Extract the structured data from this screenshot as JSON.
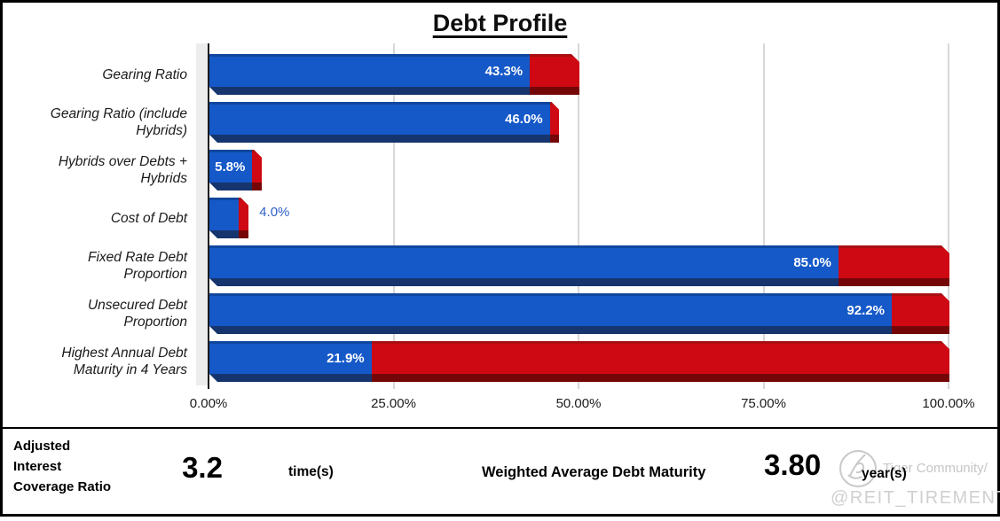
{
  "title": "Debt Profile",
  "chart_data": {
    "type": "bar",
    "orientation": "horizontal",
    "stacked": true,
    "title": "Debt Profile",
    "xlim": [
      0,
      100
    ],
    "grid": true,
    "x_ticks": [
      "0.00%",
      "25.00%",
      "50.00%",
      "75.00%",
      "100.00%"
    ],
    "x_tick_values": [
      0,
      25,
      50,
      75,
      100
    ],
    "categories": [
      "Gearing Ratio",
      "Gearing Ratio (include Hybrids)",
      "Hybrids over Debts + Hybrids",
      "Cost of Debt",
      "Fixed Rate Debt Proportion",
      "Unsecured Debt Proportion",
      "Highest Annual Debt Maturity in 4 Years"
    ],
    "series": [
      {
        "name": "value (blue)",
        "color": "#1558c8",
        "values": [
          43.3,
          46.0,
          5.8,
          4.0,
          85.0,
          92.2,
          21.9
        ]
      },
      {
        "name": "remainder (red)",
        "color": "#ce0913",
        "values": [
          6.7,
          0,
          0,
          0,
          15.0,
          7.8,
          78.1
        ]
      }
    ],
    "rows": [
      {
        "label": "Gearing Ratio",
        "label_display": "Gearing Ratio",
        "value": 43.3,
        "value_label": "43.3%",
        "red_to": 50.0,
        "label_inside": true
      },
      {
        "label": "Gearing Ratio (include Hybrids)",
        "label_display": "Gearing Ratio (include\nHybrids)",
        "value": 46.0,
        "value_label": "46.0%",
        "red_to": 46.0,
        "label_inside": true
      },
      {
        "label": "Hybrids over Debts + Hybrids",
        "label_display": "Hybrids over Debts +\nHybrids",
        "value": 5.8,
        "value_label": "5.8%",
        "red_to": 5.8,
        "label_inside": true
      },
      {
        "label": "Cost of Debt",
        "label_display": "Cost of Debt",
        "value": 4.0,
        "value_label": "4.0%",
        "red_to": 4.0,
        "label_inside": false
      },
      {
        "label": "Fixed Rate Debt Proportion",
        "label_display": "Fixed Rate Debt\nProportion",
        "value": 85.0,
        "value_label": "85.0%",
        "red_to": 100.0,
        "label_inside": true
      },
      {
        "label": "Unsecured Debt Proportion",
        "label_display": "Unsecured Debt\nProportion",
        "value": 92.2,
        "value_label": "92.2%",
        "red_to": 100.0,
        "label_inside": true
      },
      {
        "label": "Highest Annual Debt Maturity in 4 Years",
        "label_display": "Highest Annual Debt\nMaturity in 4 Years",
        "value": 21.9,
        "value_label": "21.9%",
        "red_to": 100.0,
        "label_inside": true
      }
    ]
  },
  "footer": {
    "adjusted_icr_label_lines": [
      "Adjusted",
      "Interest",
      "Coverage Ratio"
    ],
    "adjusted_icr_value": "3.2",
    "adjusted_icr_unit": "time(s)",
    "wadm_label": "Weighted Average Debt Maturity",
    "wadm_value": "3.80",
    "wadm_unit": "year(s)"
  },
  "watermark": {
    "community": "Tiger Community/",
    "handle": "@REIT_TIREMENT"
  },
  "colors": {
    "bar_blue": "#1558c8",
    "bar_blue_top": "#0f479f",
    "bar_blue_dark": "#16356e",
    "bar_red": "#ce0913",
    "bar_red_top": "#a90f12",
    "bar_red_dark": "#750607",
    "outside_label_blue": "#2f5fc7",
    "gridline": "#d8d8d8",
    "wall": "#ededed",
    "watermark_gray": "#c9c9c9"
  }
}
